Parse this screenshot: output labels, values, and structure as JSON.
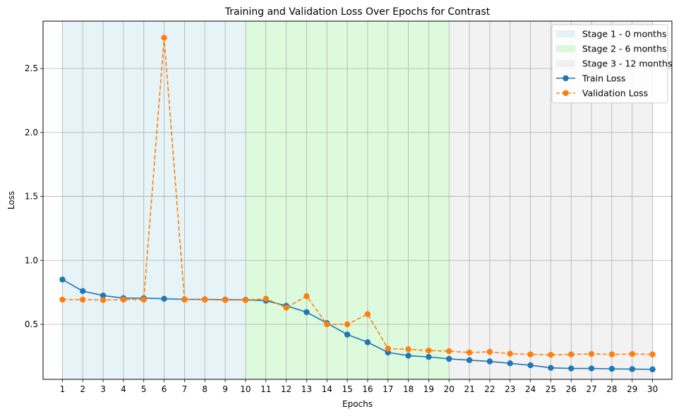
{
  "chart_data": {
    "type": "line",
    "title": "Training and Validation Loss Over Epochs for Contrast",
    "xlabel": "Epochs",
    "ylabel": "Loss",
    "x": [
      1,
      2,
      3,
      4,
      5,
      6,
      7,
      8,
      9,
      10,
      11,
      12,
      13,
      14,
      15,
      16,
      17,
      18,
      19,
      20,
      21,
      22,
      23,
      24,
      25,
      26,
      27,
      28,
      29,
      30
    ],
    "xlim": [
      0.05,
      30.95
    ],
    "ylim": [
      0.07,
      2.87
    ],
    "yticks": [
      0.5,
      1.0,
      1.5,
      2.0,
      2.5
    ],
    "ytick_labels": [
      "0.5",
      "1.0",
      "1.5",
      "2.0",
      "2.5"
    ],
    "grid": true,
    "legend_position": "top-right",
    "stages": [
      {
        "label": "Stage 1 - 0 months",
        "start": 1,
        "end": 10,
        "color": "#add8e6"
      },
      {
        "label": "Stage 2 - 6 months",
        "start": 10,
        "end": 20,
        "color": "#90ee90"
      },
      {
        "label": "Stage 3 - 12 months",
        "start": 20,
        "end": 30,
        "color": "#d3d3d3"
      }
    ],
    "series": [
      {
        "name": "Train Loss",
        "color": "#1f77b4",
        "dash": "solid",
        "values": [
          0.85,
          0.76,
          0.725,
          0.705,
          0.705,
          0.7,
          0.695,
          0.695,
          0.693,
          0.692,
          0.685,
          0.645,
          0.595,
          0.51,
          0.42,
          0.36,
          0.28,
          0.255,
          0.245,
          0.23,
          0.22,
          0.21,
          0.195,
          0.18,
          0.16,
          0.155,
          0.155,
          0.152,
          0.15,
          0.148
        ]
      },
      {
        "name": "Validation Loss",
        "color": "#ff7f0e",
        "dash": "dashed",
        "values": [
          0.693,
          0.693,
          0.69,
          0.693,
          0.693,
          2.74,
          0.693,
          0.693,
          0.69,
          0.69,
          0.7,
          0.63,
          0.72,
          0.5,
          0.5,
          0.58,
          0.31,
          0.305,
          0.295,
          0.29,
          0.28,
          0.285,
          0.27,
          0.265,
          0.262,
          0.265,
          0.268,
          0.265,
          0.268,
          0.265
        ]
      }
    ]
  }
}
